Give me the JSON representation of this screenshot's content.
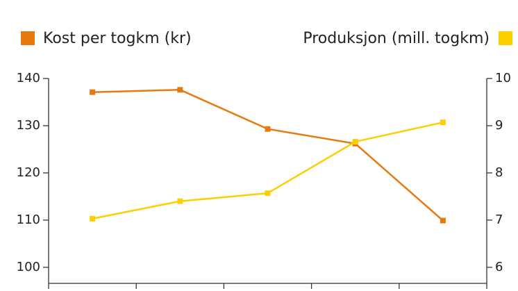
{
  "chart_data": {
    "type": "line",
    "categories": [
      null,
      null,
      null,
      null,
      null
    ],
    "series": [
      {
        "name": "Kost per togkm (kr)",
        "color": "#e8790f",
        "values": [
          137.1,
          137.6,
          129.3,
          126.2,
          109.9
        ]
      },
      {
        "name": "Produksjon (mill. togkm)",
        "color": "#fccf00",
        "axis": "y2",
        "values": [
          7.03,
          7.4,
          7.57,
          8.66,
          9.07
        ]
      }
    ],
    "ylim": [
      96.6,
      140
    ],
    "yticks": [
      100,
      110,
      120,
      130,
      140
    ],
    "y2lim": [
      5.66,
      10
    ],
    "y2ticks": [
      6,
      7,
      8,
      9,
      10
    ]
  }
}
